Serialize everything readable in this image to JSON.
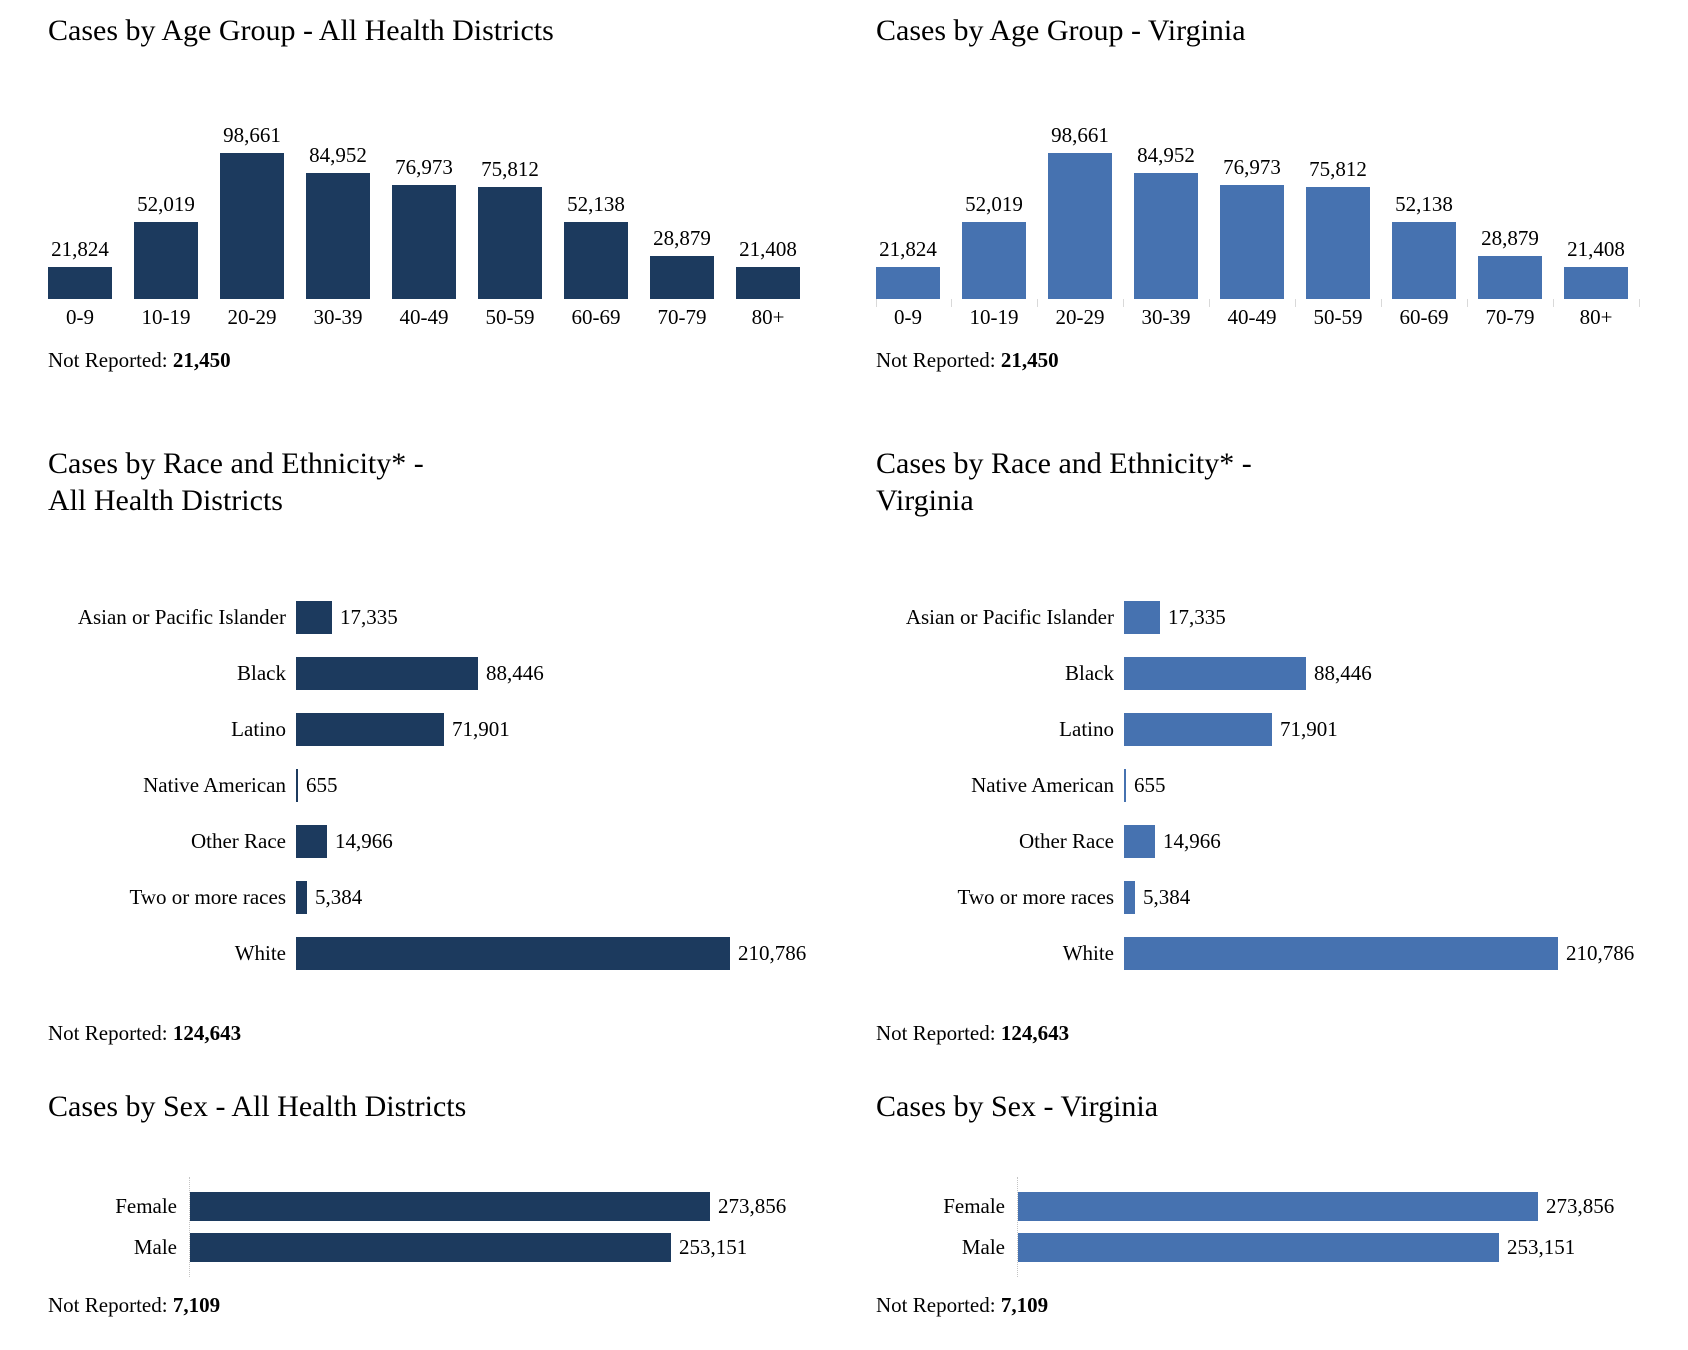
{
  "colors": {
    "dark": "#1c3a5e",
    "light": "#4672b0"
  },
  "chart_data": [
    {
      "type": "bar",
      "orientation": "vertical",
      "variant": "age",
      "color": "dark",
      "ticks": false,
      "title_lines": [
        "Cases by Age Group - All Health Districts"
      ],
      "xlabel": "",
      "ylabel": "",
      "categories": [
        "0-9",
        "10-19",
        "20-29",
        "30-39",
        "40-49",
        "50-59",
        "60-69",
        "70-79",
        "80+"
      ],
      "values": [
        21824,
        52019,
        98661,
        84952,
        76973,
        75812,
        52138,
        28879,
        21408
      ],
      "value_labels": [
        "21,824",
        "52,019",
        "98,661",
        "84,952",
        "76,973",
        "75,812",
        "52,138",
        "28,879",
        "21,408"
      ],
      "not_reported_label": "Not Reported:",
      "not_reported_value": "21,450"
    },
    {
      "type": "bar",
      "orientation": "vertical",
      "variant": "age",
      "color": "light",
      "ticks": true,
      "title_lines": [
        "Cases by Age Group - Virginia"
      ],
      "xlabel": "",
      "ylabel": "",
      "categories": [
        "0-9",
        "10-19",
        "20-29",
        "30-39",
        "40-49",
        "50-59",
        "60-69",
        "70-79",
        "80+"
      ],
      "values": [
        21824,
        52019,
        98661,
        84952,
        76973,
        75812,
        52138,
        28879,
        21408
      ],
      "value_labels": [
        "21,824",
        "52,019",
        "98,661",
        "84,952",
        "76,973",
        "75,812",
        "52,138",
        "28,879",
        "21,408"
      ],
      "not_reported_label": "Not Reported:",
      "not_reported_value": "21,450"
    },
    {
      "type": "bar",
      "orientation": "horizontal",
      "variant": "race",
      "color": "dark",
      "ticks": false,
      "title_lines": [
        "Cases by Race and Ethnicity* -",
        "All Health Districts"
      ],
      "xlabel": "",
      "ylabel": "",
      "categories": [
        "Asian or Pacific Islander",
        "Black",
        "Latino",
        "Native American",
        "Other Race",
        "Two or more races",
        "White"
      ],
      "values": [
        17335,
        88446,
        71901,
        655,
        14966,
        5384,
        210786
      ],
      "value_labels": [
        "17,335",
        "88,446",
        "71,901",
        "655",
        "14,966",
        "5,384",
        "210,786"
      ],
      "not_reported_label": "Not Reported:",
      "not_reported_value": "124,643"
    },
    {
      "type": "bar",
      "orientation": "horizontal",
      "variant": "race",
      "color": "light",
      "ticks": false,
      "title_lines": [
        "Cases by Race and Ethnicity* -",
        "Virginia"
      ],
      "xlabel": "",
      "ylabel": "",
      "categories": [
        "Asian or Pacific Islander",
        "Black",
        "Latino",
        "Native American",
        "Other Race",
        "Two or more races",
        "White"
      ],
      "values": [
        17335,
        88446,
        71901,
        655,
        14966,
        5384,
        210786
      ],
      "value_labels": [
        "17,335",
        "88,446",
        "71,901",
        "655",
        "14,966",
        "5,384",
        "210,786"
      ],
      "not_reported_label": "Not Reported:",
      "not_reported_value": "124,643"
    },
    {
      "type": "bar",
      "orientation": "horizontal",
      "variant": "sex",
      "color": "dark",
      "ticks": false,
      "title_lines": [
        "Cases by Sex - All Health Districts"
      ],
      "xlabel": "",
      "ylabel": "",
      "categories": [
        "Female",
        "Male"
      ],
      "values": [
        273856,
        253151
      ],
      "value_labels": [
        "273,856",
        "253,151"
      ],
      "not_reported_label": "Not Reported:",
      "not_reported_value": "7,109"
    },
    {
      "type": "bar",
      "orientation": "horizontal",
      "variant": "sex",
      "color": "light",
      "ticks": false,
      "title_lines": [
        "Cases by Sex - Virginia"
      ],
      "xlabel": "",
      "ylabel": "",
      "categories": [
        "Female",
        "Male"
      ],
      "values": [
        273856,
        253151
      ],
      "value_labels": [
        "273,856",
        "253,151"
      ],
      "not_reported_label": "Not Reported:",
      "not_reported_value": "7,109"
    }
  ]
}
